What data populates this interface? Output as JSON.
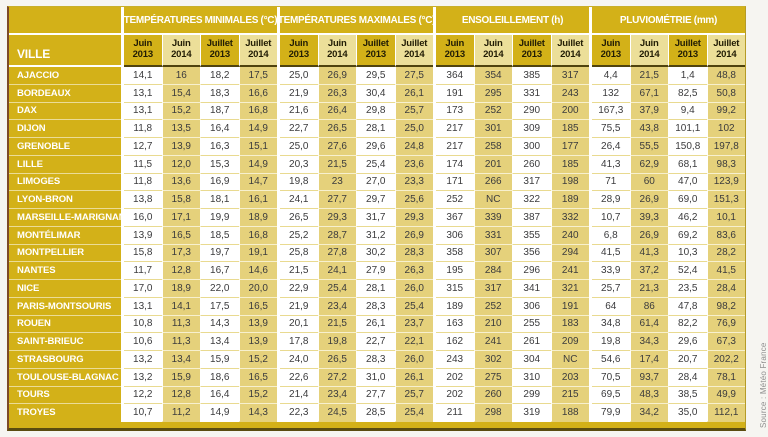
{
  "chart_data": {
    "type": "table",
    "ville_header": "VILLE",
    "sections": [
      {
        "title": "TEMPÉRATURES MINIMALES (°C)",
        "key": "temp_min"
      },
      {
        "title": "TEMPÉRATURES MAXIMALES (°C)",
        "key": "temp_max"
      },
      {
        "title": "ENSOLEILLEMENT (h)",
        "key": "sun"
      },
      {
        "title": "PLUVIOMÉTRIE (mm)",
        "key": "rain"
      }
    ],
    "month_columns": [
      {
        "month": "Juin",
        "year": "2013"
      },
      {
        "month": "Juin",
        "year": "2014"
      },
      {
        "month": "Juillet",
        "year": "2013"
      },
      {
        "month": "Juillet",
        "year": "2014"
      }
    ],
    "rows": [
      {
        "city": "AJACCIO",
        "temp_min": [
          "14,1",
          "16",
          "18,2",
          "17,5"
        ],
        "temp_max": [
          "25,0",
          "26,9",
          "29,5",
          "27,5"
        ],
        "sun": [
          "364",
          "354",
          "385",
          "317"
        ],
        "rain": [
          "4,4",
          "21,5",
          "1,4",
          "48,8"
        ]
      },
      {
        "city": "BORDEAUX",
        "temp_min": [
          "13,1",
          "15,4",
          "18,3",
          "16,6"
        ],
        "temp_max": [
          "21,9",
          "26,3",
          "30,4",
          "26,1"
        ],
        "sun": [
          "191",
          "295",
          "331",
          "243"
        ],
        "rain": [
          "132",
          "67,1",
          "82,5",
          "50,8"
        ]
      },
      {
        "city": "DAX",
        "temp_min": [
          "13,1",
          "15,2",
          "18,7",
          "16,8"
        ],
        "temp_max": [
          "21,6",
          "26,4",
          "29,8",
          "25,7"
        ],
        "sun": [
          "173",
          "252",
          "290",
          "200"
        ],
        "rain": [
          "167,3",
          "37,9",
          "9,4",
          "99,2"
        ]
      },
      {
        "city": "DIJON",
        "temp_min": [
          "11,8",
          "13,5",
          "16,4",
          "14,9"
        ],
        "temp_max": [
          "22,7",
          "26,5",
          "28,1",
          "25,0"
        ],
        "sun": [
          "217",
          "301",
          "309",
          "185"
        ],
        "rain": [
          "75,5",
          "43,8",
          "101,1",
          "102"
        ]
      },
      {
        "city": "GRENOBLE",
        "temp_min": [
          "12,7",
          "13,9",
          "16,3",
          "15,1"
        ],
        "temp_max": [
          "25,0",
          "27,6",
          "29,6",
          "24,8"
        ],
        "sun": [
          "217",
          "258",
          "300",
          "177"
        ],
        "rain": [
          "26,4",
          "55,5",
          "150,8",
          "197,8"
        ]
      },
      {
        "city": "LILLE",
        "temp_min": [
          "11,5",
          "12,0",
          "15,3",
          "14,9"
        ],
        "temp_max": [
          "20,3",
          "21,5",
          "25,4",
          "23,6"
        ],
        "sun": [
          "174",
          "201",
          "260",
          "185"
        ],
        "rain": [
          "41,3",
          "62,9",
          "68,1",
          "98,3"
        ]
      },
      {
        "city": "LIMOGES",
        "temp_min": [
          "11,8",
          "13,6",
          "16,9",
          "14,7"
        ],
        "temp_max": [
          "19,8",
          "23",
          "27,0",
          "23,3"
        ],
        "sun": [
          "171",
          "266",
          "317",
          "198"
        ],
        "rain": [
          "71",
          "60",
          "47,0",
          "123,9"
        ]
      },
      {
        "city": "LYON-BRON",
        "temp_min": [
          "13,8",
          "15,8",
          "18,1",
          "16,1"
        ],
        "temp_max": [
          "24,1",
          "27,7",
          "29,7",
          "25,6"
        ],
        "sun": [
          "252",
          "NC",
          "322",
          "189"
        ],
        "rain": [
          "28,9",
          "26,9",
          "69,0",
          "151,3"
        ]
      },
      {
        "city": "MARSEILLE-MARIGNANE",
        "temp_min": [
          "16,0",
          "17,1",
          "19,9",
          "18,9"
        ],
        "temp_max": [
          "26,5",
          "29,3",
          "31,7",
          "29,3"
        ],
        "sun": [
          "367",
          "339",
          "387",
          "332"
        ],
        "rain": [
          "10,7",
          "39,3",
          "46,2",
          "10,1"
        ]
      },
      {
        "city": "MONTÉLIMAR",
        "temp_min": [
          "13,9",
          "16,5",
          "18,5",
          "16,8"
        ],
        "temp_max": [
          "25,2",
          "28,7",
          "31,2",
          "26,9"
        ],
        "sun": [
          "306",
          "331",
          "355",
          "240"
        ],
        "rain": [
          "6,8",
          "26,9",
          "69,2",
          "83,6"
        ]
      },
      {
        "city": "MONTPELLIER",
        "temp_min": [
          "15,8",
          "17,3",
          "19,7",
          "19,1"
        ],
        "temp_max": [
          "25,8",
          "27,8",
          "30,2",
          "28,3"
        ],
        "sun": [
          "358",
          "307",
          "356",
          "294"
        ],
        "rain": [
          "41,5",
          "41,3",
          "10,3",
          "28,2"
        ]
      },
      {
        "city": "NANTES",
        "temp_min": [
          "11,7",
          "12,8",
          "16,7",
          "14,6"
        ],
        "temp_max": [
          "21,5",
          "24,1",
          "27,9",
          "26,3"
        ],
        "sun": [
          "195",
          "284",
          "296",
          "241"
        ],
        "rain": [
          "33,9",
          "37,2",
          "52,4",
          "41,5"
        ]
      },
      {
        "city": "NICE",
        "temp_min": [
          "17,0",
          "18,9",
          "22,0",
          "20,0"
        ],
        "temp_max": [
          "22,9",
          "25,4",
          "28,1",
          "26,0"
        ],
        "sun": [
          "315",
          "317",
          "341",
          "321"
        ],
        "rain": [
          "25,7",
          "21,3",
          "23,5",
          "28,4"
        ]
      },
      {
        "city": "PARIS-MONTSOURIS",
        "temp_min": [
          "13,1",
          "14,1",
          "17,5",
          "16,5"
        ],
        "temp_max": [
          "21,9",
          "23,4",
          "28,3",
          "25,4"
        ],
        "sun": [
          "189",
          "252",
          "306",
          "191"
        ],
        "rain": [
          "64",
          "86",
          "47,8",
          "98,2"
        ]
      },
      {
        "city": "ROUEN",
        "temp_min": [
          "10,8",
          "11,3",
          "14,3",
          "13,9"
        ],
        "temp_max": [
          "20,1",
          "21,5",
          "26,1",
          "23,7"
        ],
        "sun": [
          "163",
          "210",
          "255",
          "183"
        ],
        "rain": [
          "34,8",
          "61,4",
          "82,2",
          "76,9"
        ]
      },
      {
        "city": "SAINT-BRIEUC",
        "temp_min": [
          "10,6",
          "11,3",
          "13,4",
          "13,9"
        ],
        "temp_max": [
          "17,8",
          "19,8",
          "22,7",
          "22,1"
        ],
        "sun": [
          "162",
          "241",
          "261",
          "209"
        ],
        "rain": [
          "19,8",
          "34,3",
          "29,6",
          "67,3"
        ]
      },
      {
        "city": "STRASBOURG",
        "temp_min": [
          "13,2",
          "13,4",
          "15,9",
          "15,2"
        ],
        "temp_max": [
          "24,0",
          "26,5",
          "28,3",
          "26,0"
        ],
        "sun": [
          "243",
          "302",
          "304",
          "NC"
        ],
        "rain": [
          "54,6",
          "17,4",
          "20,7",
          "202,2"
        ]
      },
      {
        "city": "TOULOUSE-BLAGNAC",
        "temp_min": [
          "13,2",
          "15,9",
          "18,6",
          "16,5"
        ],
        "temp_max": [
          "22,6",
          "27,2",
          "31,0",
          "26,1"
        ],
        "sun": [
          "202",
          "275",
          "310",
          "203"
        ],
        "rain": [
          "70,5",
          "93,7",
          "28,4",
          "78,1"
        ]
      },
      {
        "city": "TOURS",
        "temp_min": [
          "12,2",
          "12,8",
          "16,4",
          "15,2"
        ],
        "temp_max": [
          "21,4",
          "23,4",
          "27,7",
          "25,7"
        ],
        "sun": [
          "202",
          "260",
          "299",
          "215"
        ],
        "rain": [
          "69,5",
          "48,3",
          "38,5",
          "49,9"
        ]
      },
      {
        "city": "TROYES",
        "temp_min": [
          "10,7",
          "11,2",
          "14,9",
          "14,3"
        ],
        "temp_max": [
          "22,3",
          "24,5",
          "28,5",
          "25,4"
        ],
        "sun": [
          "211",
          "298",
          "319",
          "188"
        ],
        "rain": [
          "79,9",
          "34,2",
          "35,0",
          "112,1"
        ]
      }
    ]
  },
  "source": "Source : Météo France",
  "colors": {
    "gold": "#d3b118",
    "cream_header": "#ecdf99",
    "tan_cell": "#e5d17b",
    "white_cell": "#ffffff",
    "dark_rule": "#4f430e",
    "left_border": "#7d4a28",
    "text_dark": "#3b3b3d",
    "text_white": "#ffffff",
    "source_gray": "#8f8f8f"
  }
}
